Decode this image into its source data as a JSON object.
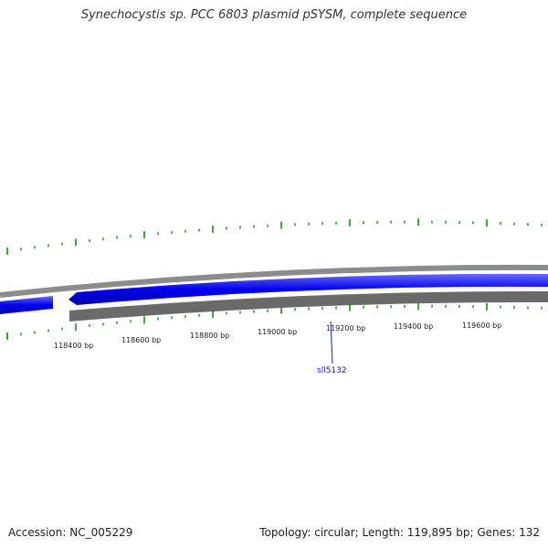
{
  "title": "Synechocystis sp. PCC 6803 plasmid pSYSM, complete sequence",
  "footer": {
    "accession": "Accession: NC_005229",
    "summary": "Topology: circular; Length: 119,895 bp; Genes: 132"
  },
  "scale": {
    "labels": [
      "118400 bp",
      "118600 bp",
      "118800 bp",
      "119000 bp",
      "119200 bp",
      "119400 bp",
      "119600 bp"
    ]
  },
  "genes": [
    {
      "name": "sll5132",
      "strand": "reverse"
    }
  ],
  "colors": {
    "gene_forward": "#0000ee",
    "backbone": "#777777",
    "backbone_light": "#aaaaaa",
    "ticks": "#1a8a1a",
    "gene_label": "#1a1acc"
  }
}
